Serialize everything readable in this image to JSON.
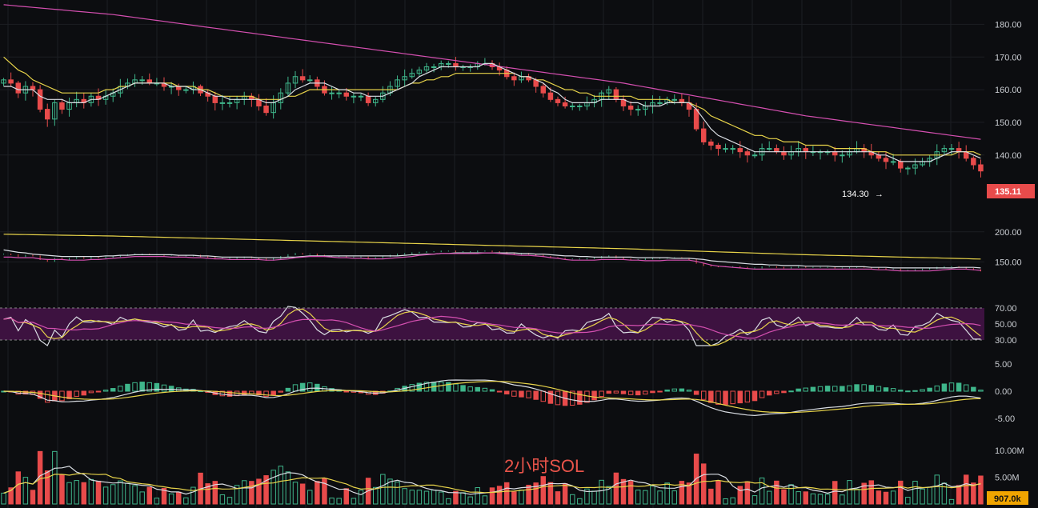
{
  "colors": {
    "background": "#0c0d10",
    "up": "#3fb68b",
    "down": "#e84b4b",
    "ma_fast": "#d9dde3",
    "ma_mid": "#e8d44a",
    "ma_slow": "#d44fb0",
    "rsi_band": "#3d1240",
    "grid": "#1c1e23",
    "axis_text": "#c9ccd1"
  },
  "watermark": "2小时SOL",
  "price_tag": {
    "current": "135.11",
    "low_marker": "134.30"
  },
  "volume_tag": "907.0k",
  "chart_data": [
    {
      "type": "candlestick",
      "name": "price",
      "ylim": [
        125,
        185
      ],
      "yticks": [
        "180.00",
        "170.00",
        "160.00",
        "150.00",
        "140.00"
      ],
      "close": [
        163,
        162,
        159,
        161,
        160,
        154,
        151,
        156,
        154,
        156,
        157,
        156,
        158,
        157,
        158,
        159,
        161,
        162,
        163,
        163,
        162,
        162,
        161,
        161,
        160,
        160,
        161,
        159,
        158,
        156,
        156,
        156,
        157,
        158,
        157,
        155,
        153,
        156,
        159,
        162,
        164,
        163,
        163,
        161,
        159,
        159,
        159,
        158,
        158,
        158,
        156,
        157,
        159,
        161,
        163,
        164,
        165,
        166,
        167,
        167,
        168,
        168,
        167,
        167,
        167,
        168,
        168,
        167,
        166,
        164,
        163,
        164,
        163,
        161,
        159,
        157,
        156,
        155,
        155,
        155,
        156,
        157,
        159,
        160,
        157,
        155,
        154,
        154,
        155,
        156,
        156,
        157,
        157,
        156,
        154,
        148,
        144,
        143,
        142,
        142,
        142,
        141,
        140,
        140,
        142,
        142,
        141,
        140,
        141,
        142,
        141,
        141,
        141,
        141,
        140,
        140,
        141,
        142,
        141,
        140,
        139,
        138,
        138,
        136,
        136,
        137,
        138,
        139,
        141,
        142,
        142,
        141,
        139,
        137,
        135.11
      ],
      "ma_fast": [
        161,
        161,
        160,
        160,
        160,
        158,
        157,
        157,
        157,
        156,
        156,
        156,
        157,
        157,
        158,
        159,
        160,
        161,
        162,
        162,
        162,
        162,
        162,
        161,
        161,
        161,
        160,
        160,
        159,
        158,
        158,
        157,
        157,
        157,
        157,
        157,
        156,
        156,
        157,
        158,
        160,
        161,
        162,
        162,
        162,
        161,
        160,
        160,
        159,
        159,
        158,
        158,
        158,
        159,
        160,
        161,
        162,
        164,
        165,
        166,
        167,
        167,
        167,
        167,
        167,
        167,
        168,
        168,
        167,
        166,
        165,
        164,
        164,
        163,
        162,
        160,
        159,
        157,
        156,
        156,
        156,
        156,
        157,
        157,
        157,
        157,
        156,
        156,
        155,
        155,
        155,
        156,
        156,
        156,
        156,
        154,
        151,
        148,
        146,
        145,
        144,
        143,
        142,
        141,
        141,
        141,
        141,
        141,
        141,
        141,
        141,
        141,
        141,
        141,
        141,
        141,
        141,
        141,
        141,
        141,
        140,
        140,
        139,
        138,
        138,
        138,
        138,
        138,
        139,
        140,
        141,
        141,
        141,
        140,
        139
      ],
      "ma_mid": [
        170,
        168,
        166,
        165,
        163,
        162,
        161,
        160,
        159,
        159,
        159,
        159,
        159,
        159,
        160,
        160,
        161,
        161,
        162,
        162,
        162,
        162,
        162,
        162,
        161,
        161,
        161,
        160,
        160,
        159,
        158,
        158,
        158,
        158,
        158,
        157,
        157,
        157,
        157,
        158,
        158,
        159,
        160,
        160,
        160,
        160,
        160,
        160,
        160,
        160,
        160,
        160,
        160,
        160,
        160,
        161,
        162,
        162,
        163,
        163,
        164,
        164,
        165,
        165,
        165,
        165,
        165,
        165,
        165,
        165,
        165,
        164,
        164,
        163,
        163,
        162,
        161,
        160,
        160,
        159,
        159,
        158,
        158,
        158,
        158,
        158,
        158,
        157,
        157,
        157,
        157,
        157,
        156,
        156,
        156,
        155,
        154,
        152,
        151,
        150,
        149,
        148,
        147,
        146,
        146,
        145,
        145,
        144,
        144,
        144,
        143,
        143,
        143,
        143,
        142,
        142,
        142,
        142,
        142,
        141,
        141,
        141,
        140,
        140,
        140,
        140,
        140,
        140,
        140,
        140,
        140,
        141,
        141,
        141,
        140
      ],
      "ma_slow": [
        186,
        185.8,
        185.6,
        185.4,
        185.2,
        185,
        184.8,
        184.6,
        184.4,
        184.2,
        184,
        183.8,
        183.6,
        183.4,
        183.2,
        183,
        182.7,
        182.4,
        182.1,
        181.8,
        181.5,
        181.2,
        180.9,
        180.6,
        180.3,
        180,
        179.7,
        179.4,
        179.1,
        178.8,
        178.5,
        178.2,
        177.9,
        177.6,
        177.3,
        177,
        176.7,
        176.4,
        176.1,
        175.8,
        175.5,
        175.2,
        174.9,
        174.6,
        174.3,
        174,
        173.7,
        173.4,
        173.1,
        172.8,
        172.5,
        172.2,
        171.9,
        171.6,
        171.3,
        171,
        170.7,
        170.4,
        170.1,
        169.8,
        169.5,
        169.2,
        168.9,
        168.6,
        168.3,
        168,
        167.7,
        167.4,
        167.1,
        166.8,
        166.5,
        166.2,
        165.9,
        165.6,
        165.3,
        165,
        164.7,
        164.4,
        164.1,
        163.8,
        163.5,
        163.2,
        162.9,
        162.6,
        162.3,
        162,
        161.6,
        161.2,
        160.8,
        160.4,
        160,
        159.6,
        159.2,
        158.8,
        158.4,
        158,
        157.6,
        157.2,
        156.8,
        156.4,
        156,
        155.6,
        155.2,
        154.8,
        154.4,
        154,
        153.6,
        153.2,
        152.8,
        152.4,
        152,
        151.7,
        151.4,
        151.1,
        150.8,
        150.5,
        150.2,
        149.9,
        149.6,
        149.3,
        149,
        148.7,
        148.4,
        148.1,
        147.8,
        147.5,
        147.2,
        146.9,
        146.6,
        146.3,
        146,
        145.7,
        145.4,
        145.1,
        144.8
      ]
    },
    {
      "type": "line",
      "name": "overview",
      "yticks": [
        "200.00",
        "150.00"
      ]
    },
    {
      "type": "line",
      "name": "RSI",
      "yticks": [
        "70.00",
        "50.00",
        "30.00"
      ],
      "band": [
        30,
        70
      ]
    },
    {
      "type": "bar",
      "name": "MACD",
      "yticks": [
        "5.00",
        "0.00",
        "-5.00"
      ]
    },
    {
      "type": "bar",
      "name": "volume",
      "yticks": [
        "10.00M",
        "5.00M"
      ]
    }
  ]
}
